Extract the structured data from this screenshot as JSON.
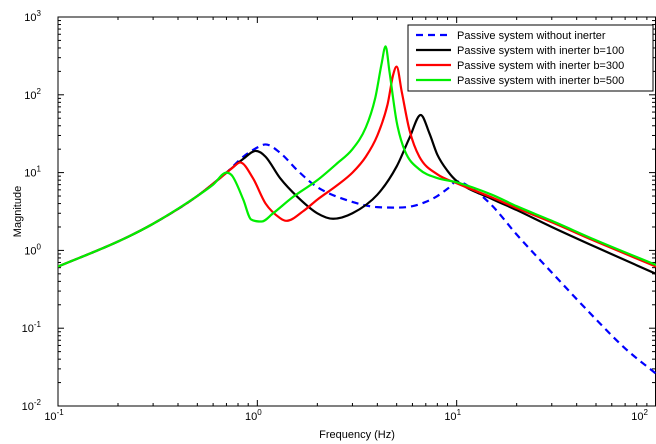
{
  "chart_data": {
    "type": "line",
    "title": "",
    "xlabel": "Frequency (Hz)",
    "ylabel": "Magnitude",
    "xscale": "log",
    "yscale": "log",
    "xlim": [
      0.1,
      100
    ],
    "ylim": [
      0.01,
      1000
    ],
    "x_ticks": [
      {
        "base": "10",
        "exp": "-1"
      },
      {
        "base": "10",
        "exp": "0"
      },
      {
        "base": "10",
        "exp": "1"
      },
      {
        "base": "10",
        "exp": "2"
      }
    ],
    "y_ticks": [
      {
        "base": "10",
        "exp": "-2"
      },
      {
        "base": "10",
        "exp": "-1"
      },
      {
        "base": "10",
        "exp": "0"
      },
      {
        "base": "10",
        "exp": "1"
      },
      {
        "base": "10",
        "exp": "2"
      },
      {
        "base": "10",
        "exp": "3"
      }
    ],
    "grid": false,
    "legend_position": "top-right",
    "series": [
      {
        "name": "Passive system without inerter",
        "color": "#0000ff",
        "dash": "dashed",
        "x": [
          0.1,
          0.2,
          0.3,
          0.5,
          0.7,
          0.85,
          1.0,
          1.1,
          1.3,
          1.6,
          2.0,
          3.0,
          4.0,
          5.0,
          6.0,
          7.0,
          8.0,
          9.0,
          10.0,
          12.0,
          15.0,
          20.0,
          30.0,
          50.0,
          70.0,
          100.0
        ],
        "y": [
          0.62,
          1.3,
          2.2,
          5.0,
          10.0,
          16.0,
          21.0,
          23.0,
          18.0,
          10.5,
          6.5,
          4.2,
          3.6,
          3.55,
          3.7,
          4.2,
          5.0,
          6.2,
          7.7,
          6.2,
          3.8,
          1.6,
          0.52,
          0.13,
          0.055,
          0.026
        ]
      },
      {
        "name": "Passive system with inerter b=100",
        "color": "#000000",
        "dash": "solid",
        "x": [
          0.1,
          0.2,
          0.3,
          0.5,
          0.7,
          0.85,
          0.98,
          1.1,
          1.3,
          1.6,
          2.0,
          2.4,
          3.0,
          4.0,
          5.0,
          5.8,
          6.6,
          7.3,
          8.0,
          9.0,
          10.0,
          15.0,
          20.0,
          30.0,
          50.0,
          100.0
        ],
        "y": [
          0.62,
          1.3,
          2.2,
          5.0,
          10.0,
          15.0,
          19.0,
          16.0,
          8.5,
          4.8,
          3.0,
          2.55,
          3.0,
          5.2,
          12.0,
          28.0,
          55.0,
          32.0,
          17.0,
          10.5,
          7.8,
          4.6,
          3.3,
          2.0,
          1.1,
          0.5
        ]
      },
      {
        "name": "Passive system with inerter b=300",
        "color": "#ff0000",
        "dash": "solid",
        "x": [
          0.1,
          0.2,
          0.3,
          0.5,
          0.65,
          0.75,
          0.82,
          0.95,
          1.1,
          1.3,
          1.4,
          1.7,
          2.0,
          2.5,
          3.0,
          3.5,
          4.0,
          4.5,
          4.8,
          5.0,
          5.3,
          5.8,
          6.5,
          8.0,
          10.0,
          15.0,
          20.0,
          30.0,
          50.0,
          100.0
        ],
        "y": [
          0.62,
          1.3,
          2.2,
          5.0,
          8.5,
          11.5,
          13.5,
          8.5,
          4.0,
          2.6,
          2.4,
          3.2,
          4.5,
          6.8,
          10.0,
          16.0,
          30.0,
          75.0,
          180.0,
          230.0,
          110.0,
          35.0,
          16.0,
          9.5,
          7.3,
          4.8,
          3.5,
          2.3,
          1.3,
          0.62
        ]
      },
      {
        "name": "Passive system with inerter b=500",
        "color": "#00ee00",
        "dash": "solid",
        "x": [
          0.1,
          0.2,
          0.3,
          0.5,
          0.6,
          0.7,
          0.75,
          0.85,
          0.93,
          1.05,
          1.2,
          1.5,
          2.0,
          2.5,
          3.0,
          3.5,
          3.9,
          4.2,
          4.4,
          4.6,
          5.0,
          5.5,
          6.5,
          8.0,
          10.0,
          15.0,
          20.0,
          30.0,
          50.0,
          100.0
        ],
        "y": [
          0.62,
          1.3,
          2.2,
          5.0,
          7.0,
          10.0,
          9.0,
          4.5,
          2.5,
          2.35,
          3.0,
          4.8,
          8.0,
          13.0,
          20.0,
          38.0,
          90.0,
          250.0,
          420.0,
          200.0,
          45.0,
          19.0,
          11.0,
          8.5,
          7.5,
          5.2,
          3.7,
          2.4,
          1.35,
          0.65
        ]
      }
    ]
  }
}
